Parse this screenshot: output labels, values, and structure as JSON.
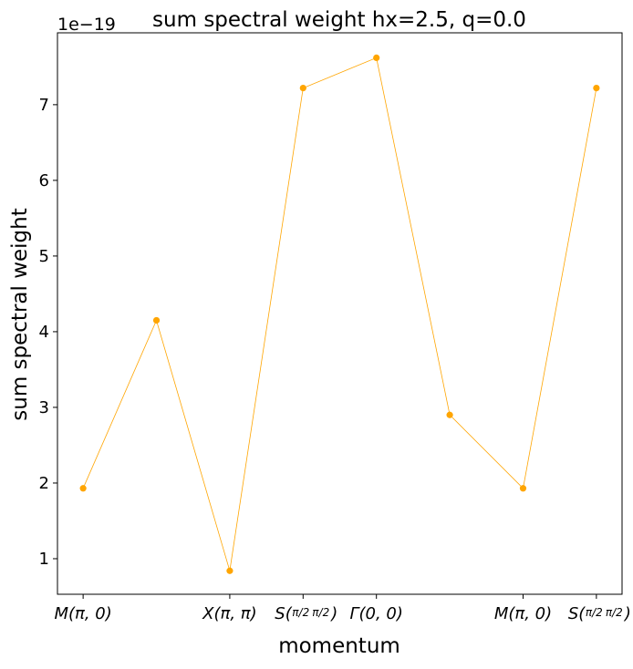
{
  "chart_data": {
    "type": "line",
    "title": "sum spectral weight hx=2.5, q=0.0",
    "xlabel": "momentum",
    "ylabel": "sum spectral weight",
    "y_scale_label": "1e−19",
    "y_scale_exponent": -19,
    "ylim": [
      0.53,
      7.95
    ],
    "xlim": [
      -0.35,
      7.35
    ],
    "y_ticks": [
      1,
      2,
      3,
      4,
      5,
      6,
      7
    ],
    "x_ticks": [
      {
        "x": 0,
        "label_main": "M(π, 0)"
      },
      {
        "x": 2,
        "label_main": "X(π, π)"
      },
      {
        "x": 3,
        "label_main": "S(",
        "frac1": "π/2",
        "frac2": "π/2",
        "label_end": ")"
      },
      {
        "x": 4,
        "label_main": "Γ(0, 0)"
      },
      {
        "x": 6,
        "label_main": "M(π, 0)"
      },
      {
        "x": 7,
        "label_main": "S(",
        "frac1": "π/2",
        "frac2": "π/2",
        "label_end": ")"
      }
    ],
    "series": [
      {
        "name": "sum spectral weight",
        "color": "#ffa500",
        "x": [
          0,
          1,
          2,
          3,
          4,
          5,
          6,
          7
        ],
        "values": [
          1.93,
          4.15,
          0.84,
          7.22,
          7.62,
          2.9,
          1.93,
          7.22
        ]
      }
    ]
  }
}
